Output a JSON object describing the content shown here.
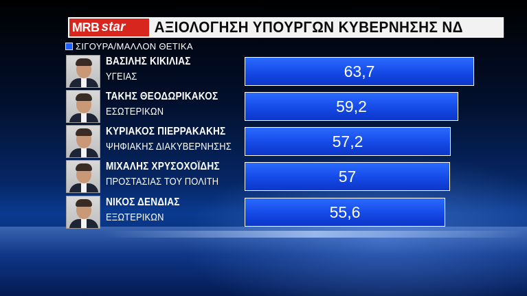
{
  "header": {
    "logo_brand": "MRB",
    "logo_channel": "star",
    "title": "ΑΞΙΟΛΟΓΗΣΗ ΥΠΟΥΡΓΩΝ ΚΥΒΕΡΝΗΣΗΣ ΝΔ"
  },
  "colors": {
    "bar": "#1f5fff",
    "logo_bg": "#d7261e",
    "title_bg": "#f2f2f2",
    "background": "#01164a"
  },
  "chart_data": {
    "type": "bar",
    "orientation": "horizontal",
    "title": "ΑΞΙΟΛΟΓΗΣΗ ΥΠΟΥΡΓΩΝ ΚΥΒΕΡΝΗΣΗΣ ΝΔ",
    "legend_position": "top-left",
    "grid": false,
    "xlim": [
      0,
      70
    ],
    "categories": [
      {
        "name": "ΒΑΣΙΛΗΣ ΚΙΚΙΛΙΑΣ",
        "role": "ΥΓΕΙΑΣ"
      },
      {
        "name": "ΤΑΚΗΣ ΘΕΟΔΩΡΙΚΑΚΟΣ",
        "role": "ΕΣΩΤΕΡΙΚΩΝ"
      },
      {
        "name": "ΚΥΡΙΑΚΟΣ ΠΙΕΡΡΑΚΑΚΗΣ",
        "role": "ΨΗΦΙΑΚΗΣ ΔΙΑΚΥΒΕΡΝΗΣΗΣ"
      },
      {
        "name": "ΜΙΧΑΛΗΣ ΧΡΥΣΟΧΟΪΔΗΣ",
        "role": "ΠΡΟΣΤΑΣΙΑΣ ΤΟΥ ΠΟΛΙΤΗ"
      },
      {
        "name": "ΝΙΚΟΣ ΔΕΝΔΙΑΣ",
        "role": "ΕΞΩΤΕΡΙΚΩΝ"
      }
    ],
    "series": [
      {
        "name": "ΣΙΓΟΥΡΑ/ΜΑΛΛΟΝ ΘΕΤΙΚΑ",
        "values": [
          63.7,
          59.2,
          57.2,
          57,
          55.6
        ],
        "labels": [
          "63,7",
          "59,2",
          "57,2",
          "57",
          "55,6"
        ]
      }
    ]
  }
}
